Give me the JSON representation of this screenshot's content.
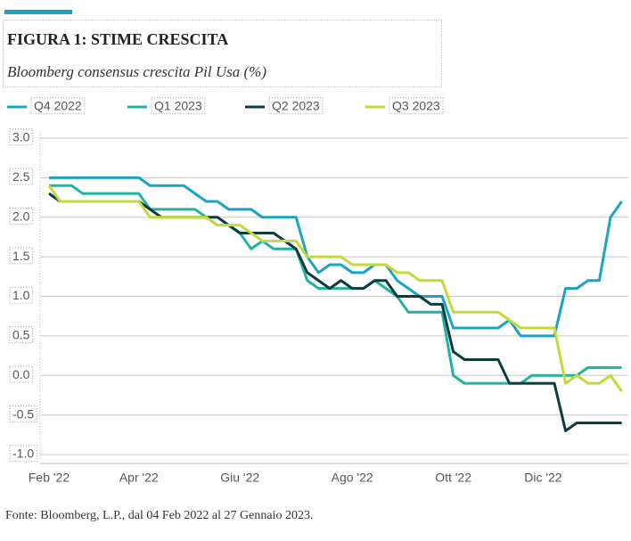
{
  "chart_data": {
    "type": "line",
    "title": "FIGURA 1: STIME CRESCITA",
    "subtitle": "Bloomberg consensus crescita Pil Usa  (%)",
    "source": "Fonte: Bloomberg, L.P., dal 04 Feb 2022 al 27 Gennaio 2023.",
    "categories": [
      "Feb '22",
      null,
      null,
      null,
      null,
      null,
      null,
      null,
      "Apr '22",
      null,
      null,
      null,
      null,
      null,
      null,
      null,
      null,
      "Giu '22",
      null,
      null,
      null,
      null,
      null,
      null,
      null,
      null,
      null,
      "Ago '22",
      null,
      null,
      null,
      null,
      null,
      null,
      null,
      null,
      "Ott '22",
      null,
      null,
      null,
      null,
      null,
      null,
      null,
      "Dic '22",
      null,
      null,
      null,
      null,
      null,
      null,
      null
    ],
    "series": [
      {
        "name": "Q4 2022",
        "color": "#1ba3c6",
        "values": [
          2.5,
          2.5,
          2.5,
          2.5,
          2.5,
          2.5,
          2.5,
          2.5,
          2.5,
          2.4,
          2.4,
          2.4,
          2.4,
          2.3,
          2.2,
          2.2,
          2.1,
          2.1,
          2.1,
          2.0,
          2.0,
          2.0,
          2.0,
          1.5,
          1.3,
          1.4,
          1.4,
          1.3,
          1.3,
          1.4,
          1.4,
          1.2,
          1.1,
          1.0,
          1.0,
          1.0,
          0.6,
          0.6,
          0.6,
          0.6,
          0.6,
          0.7,
          0.5,
          0.5,
          0.5,
          0.5,
          1.1,
          1.1,
          1.2,
          1.2,
          2.0,
          2.2
        ]
      },
      {
        "name": "Q1 2023",
        "color": "#21b3a0",
        "values": [
          2.4,
          2.4,
          2.4,
          2.3,
          2.3,
          2.3,
          2.3,
          2.3,
          2.3,
          2.1,
          2.1,
          2.1,
          2.1,
          2.1,
          2.0,
          1.9,
          1.9,
          1.8,
          1.6,
          1.7,
          1.6,
          1.6,
          1.6,
          1.2,
          1.1,
          1.1,
          1.1,
          1.1,
          1.1,
          1.2,
          1.1,
          1.0,
          0.8,
          0.8,
          0.8,
          0.8,
          0.0,
          -0.1,
          -0.1,
          -0.1,
          -0.1,
          -0.1,
          -0.1,
          0.0,
          0.0,
          0.0,
          0.0,
          0.0,
          0.1,
          0.1,
          0.1,
          0.1
        ]
      },
      {
        "name": "Q2 2023",
        "color": "#0b3d3f",
        "values": [
          2.3,
          2.2,
          2.2,
          2.2,
          2.2,
          2.2,
          2.2,
          2.2,
          2.2,
          2.1,
          2.0,
          2.0,
          2.0,
          2.0,
          2.0,
          2.0,
          1.9,
          1.8,
          1.8,
          1.8,
          1.8,
          1.7,
          1.6,
          1.3,
          1.2,
          1.1,
          1.2,
          1.1,
          1.1,
          1.2,
          1.2,
          1.0,
          1.0,
          1.0,
          0.9,
          0.9,
          0.3,
          0.2,
          0.2,
          0.2,
          0.2,
          -0.1,
          -0.1,
          -0.1,
          -0.1,
          -0.1,
          -0.7,
          -0.6,
          -0.6,
          -0.6,
          -0.6,
          -0.6
        ]
      },
      {
        "name": "Q3 2023",
        "color": "#c5d93a",
        "values": [
          2.4,
          2.2,
          2.2,
          2.2,
          2.2,
          2.2,
          2.2,
          2.2,
          2.2,
          2.0,
          2.0,
          2.0,
          2.0,
          2.0,
          2.0,
          1.9,
          1.9,
          1.9,
          1.8,
          1.7,
          1.7,
          1.7,
          1.7,
          1.5,
          1.5,
          1.5,
          1.5,
          1.4,
          1.4,
          1.4,
          1.4,
          1.3,
          1.3,
          1.2,
          1.2,
          1.2,
          0.8,
          0.8,
          0.8,
          0.8,
          0.8,
          0.7,
          0.6,
          0.6,
          0.6,
          0.6,
          -0.1,
          0.0,
          -0.1,
          -0.1,
          0.0,
          -0.2
        ]
      }
    ],
    "ylim": [
      -1.0,
      3.0
    ],
    "yticks": [
      {
        "value": 3.0,
        "label": "3.0"
      },
      2.5,
      {
        "value": 2.0,
        "label": "2.0"
      },
      1.5,
      {
        "value": 1.0,
        "label": "1.0"
      },
      0.5,
      {
        "value": 0.0,
        "label": "0.0"
      },
      -0.5,
      {
        "value": -1.0,
        "label": "-1.0"
      }
    ],
    "grid": true
  }
}
